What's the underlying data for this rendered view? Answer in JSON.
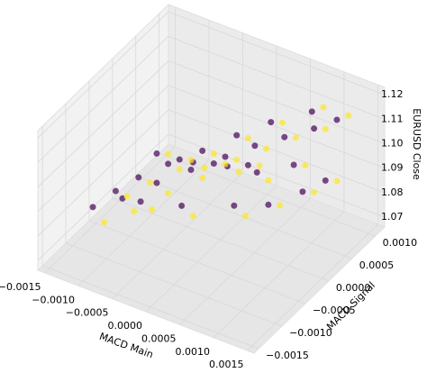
{
  "chart_data": {
    "type": "scatter3d",
    "xlabel": "MACD Main",
    "ylabel": "MACD Signal",
    "zlabel": "EURUSD Close",
    "xlim": [
      -0.0016,
      0.0016
    ],
    "ylim": [
      -0.0016,
      0.0012
    ],
    "zlim": [
      1.066,
      1.123
    ],
    "xticks": [
      {
        "value": -0.0015,
        "label": "−0.0015"
      },
      {
        "value": -0.001,
        "label": "−0.0010"
      },
      {
        "value": -0.0005,
        "label": "−0.0005"
      },
      {
        "value": 0,
        "label": "0.0000"
      },
      {
        "value": 0.0005,
        "label": "0.0005"
      },
      {
        "value": 0.001,
        "label": "0.0010"
      },
      {
        "value": 0.0015,
        "label": "0.0015"
      }
    ],
    "yticks": [
      {
        "value": -0.0015,
        "label": "−0.0015"
      },
      {
        "value": -0.001,
        "label": "−0.0010"
      },
      {
        "value": -0.0005,
        "label": "−0.0005"
      },
      {
        "value": 0,
        "label": "0.0000"
      },
      {
        "value": 0.0005,
        "label": "0.0005"
      },
      {
        "value": 0.001,
        "label": "0.0010"
      }
    ],
    "zticks": [
      1.07,
      1.08,
      1.09,
      {
        "value": 1.1,
        "label": "1.10"
      },
      1.11,
      1.12
    ],
    "grid": true,
    "series": [
      {
        "color": "#440154",
        "x": [
          -0.0012,
          -0.0009,
          -0.0006,
          -0.0003,
          0.0,
          0.0003,
          0.0006,
          0.0009,
          0.0011,
          0.0008,
          0.0004,
          0.0001,
          -0.0002,
          -0.0005,
          -0.0008,
          -0.001,
          -0.0007,
          -0.0003,
          0.0002,
          0.0005,
          0.0008,
          0.001,
          0.0006,
          0.0002,
          -0.0001,
          -0.0004,
          -0.0006,
          -0.0002,
          0.0001,
          0.0004
        ],
        "y": [
          -0.001,
          -0.0008,
          -0.0005,
          -0.0002,
          0.0001,
          0.0003,
          0.0005,
          0.0007,
          0.0009,
          0.0008,
          0.0005,
          0.0002,
          -0.0001,
          -0.0004,
          -0.0006,
          -0.0008,
          -0.0007,
          -0.0004,
          0.0,
          0.0003,
          0.0006,
          0.0008,
          0.0007,
          0.0003,
          0.0,
          -0.0003,
          -0.0005,
          -0.0003,
          0.0,
          0.0002
        ],
        "z": [
          1.085,
          1.088,
          1.092,
          1.095,
          1.098,
          1.102,
          1.105,
          1.108,
          1.11,
          1.112,
          1.109,
          1.106,
          1.102,
          1.099,
          1.094,
          1.09,
          1.087,
          1.084,
          1.082,
          1.08,
          1.083,
          1.086,
          1.09,
          1.093,
          1.096,
          1.1,
          1.104,
          1.101,
          1.097,
          1.094
        ]
      },
      {
        "color": "#fde725",
        "x": [
          -0.0011,
          -0.0008,
          -0.0005,
          -0.0002,
          0.0001,
          0.0004,
          0.0007,
          0.001,
          0.0012,
          0.0009,
          0.0005,
          0.0002,
          -0.0001,
          -0.0004,
          -0.0007,
          -0.0009,
          -0.0006,
          -0.0002,
          0.0003,
          0.0006,
          0.0009,
          0.0011,
          0.0007,
          0.0003,
          0.0,
          -0.0003,
          -0.0005,
          -0.0001,
          0.0002,
          0.0005
        ],
        "y": [
          -0.0009,
          -0.0007,
          -0.0004,
          -0.0001,
          0.0002,
          0.0004,
          0.0006,
          0.0008,
          0.001,
          0.0009,
          0.0006,
          0.0003,
          0.0,
          -0.0003,
          -0.0005,
          -0.0007,
          -0.0006,
          -0.0003,
          0.0001,
          0.0004,
          0.0007,
          0.0009,
          0.0008,
          0.0004,
          0.0001,
          -0.0002,
          -0.0004,
          -0.0002,
          0.0001,
          0.0003
        ],
        "z": [
          1.078,
          1.082,
          1.087,
          1.091,
          1.096,
          1.1,
          1.104,
          1.107,
          1.111,
          1.113,
          1.108,
          1.104,
          1.1,
          1.096,
          1.091,
          1.087,
          1.083,
          1.079,
          1.077,
          1.079,
          1.082,
          1.085,
          1.089,
          1.092,
          1.095,
          1.099,
          1.103,
          1.098,
          1.094,
          1.09
        ]
      }
    ]
  }
}
